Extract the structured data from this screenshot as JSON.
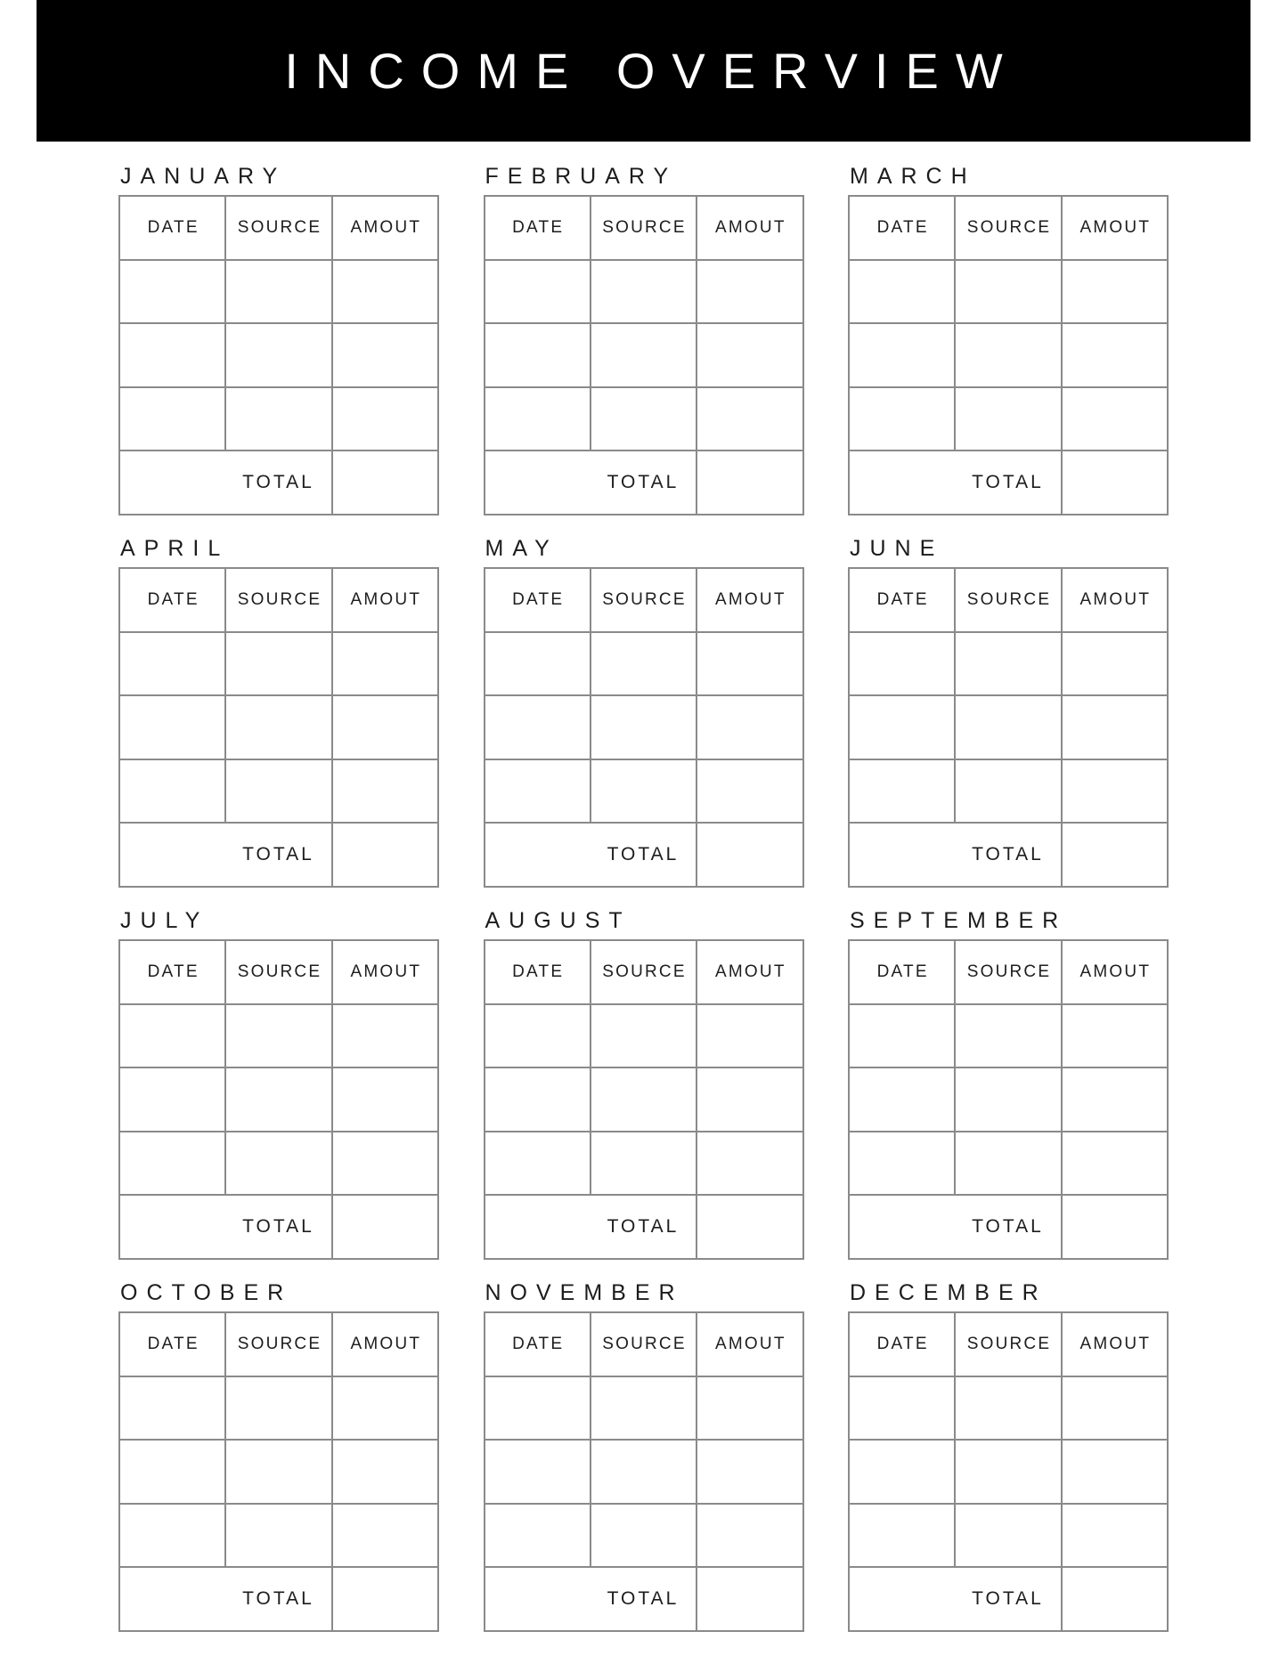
{
  "page": {
    "title": "INCOME OVERVIEW"
  },
  "months": [
    "JANUARY",
    "FEBRUARY",
    "MARCH",
    "APRIL",
    "MAY",
    "JUNE",
    "JULY",
    "AUGUST",
    "SEPTEMBER",
    "OCTOBER",
    "NOVEMBER",
    "DECEMBER"
  ],
  "table": {
    "columns": [
      "DATE",
      "SOURCE",
      "AMOUT"
    ],
    "rows": [
      [
        "",
        "",
        ""
      ],
      [
        "",
        "",
        ""
      ],
      [
        "",
        "",
        ""
      ]
    ],
    "total_label": "TOTAL",
    "total_value": ""
  },
  "colors": {
    "banner_bg": "#000000",
    "banner_text": "#ffffff",
    "page_bg": "#ffffff",
    "grid_line": "#8a8a8a",
    "text": "#1d1d1d"
  }
}
